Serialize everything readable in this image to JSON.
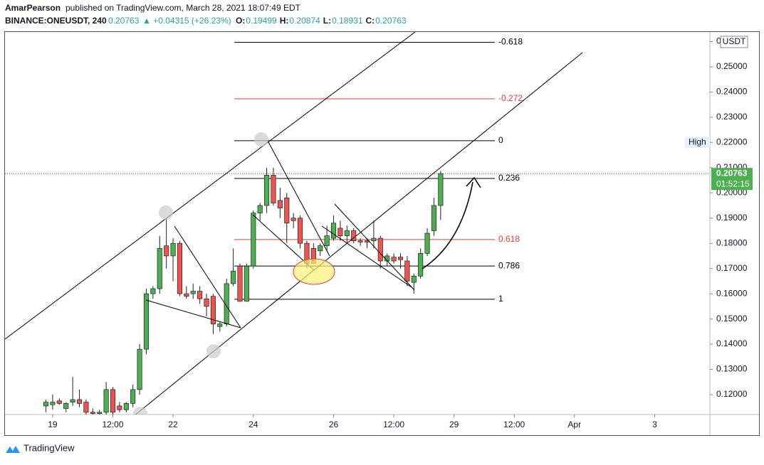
{
  "header": {
    "author": "AmarPearson",
    "published": "published on TradingView.com, March 28, 2021 18:07:49 EDT",
    "symbol": "BINANCE:ONEUSDT, 240",
    "price": "0.20763",
    "change": "▲ +0.04315 (+26.23%)",
    "ohlc": [
      {
        "key": "O:",
        "value": "0.19499"
      },
      {
        "key": "H:",
        "value": "0.20874"
      },
      {
        "key": "L:",
        "value": "0.18931"
      },
      {
        "key": "C:",
        "value": "0.20763"
      }
    ]
  },
  "footer": {
    "brand": "TradingView"
  },
  "chart_data": {
    "type": "candlestick",
    "currency": "USDT",
    "up_color": "#4caf50",
    "down_color": "#ef5350",
    "xlim": [
      -28.5,
      393
    ],
    "ylim": [
      0.1121,
      0.2638
    ],
    "xticks": [
      {
        "value": 0,
        "label": "19"
      },
      {
        "value": 36,
        "label": "12:00"
      },
      {
        "value": 72,
        "label": "22"
      },
      {
        "value": 120,
        "label": "24"
      },
      {
        "value": 168,
        "label": "26"
      },
      {
        "value": 204,
        "label": "12:00"
      },
      {
        "value": 240,
        "label": "29"
      },
      {
        "value": 276,
        "label": "12:00"
      },
      {
        "value": 312,
        "label": "Apr"
      },
      {
        "value": 360,
        "label": "3"
      }
    ],
    "yticks": [
      {
        "value": 0.12,
        "label": "0.12000"
      },
      {
        "value": 0.13,
        "label": "0.13000"
      },
      {
        "value": 0.14,
        "label": "0.14000"
      },
      {
        "value": 0.15,
        "label": "0.15000"
      },
      {
        "value": 0.16,
        "label": "0.16000"
      },
      {
        "value": 0.17,
        "label": "0.17000"
      },
      {
        "value": 0.18,
        "label": "0.18000"
      },
      {
        "value": 0.19,
        "label": "0.19000"
      },
      {
        "value": 0.2,
        "label": "0.20000"
      },
      {
        "value": 0.21,
        "label": "0.21000"
      },
      {
        "value": 0.22,
        "label": "0.22000"
      },
      {
        "value": 0.23,
        "label": "0.23000"
      },
      {
        "value": 0.24,
        "label": "0.24000"
      },
      {
        "value": 0.25,
        "label": "0.25000"
      },
      {
        "value": 0.26,
        "label": "0.26000"
      }
    ],
    "x": [
      -4,
      0,
      4,
      8,
      12,
      16,
      20,
      24,
      28,
      32,
      36,
      40,
      44,
      48,
      52,
      56,
      60,
      64,
      68,
      72,
      76,
      80,
      84,
      88,
      92,
      96,
      100,
      104,
      108,
      112,
      116,
      120,
      124,
      128,
      132,
      136,
      140,
      144,
      148,
      152,
      156,
      160,
      164,
      168,
      172,
      176,
      180,
      184,
      188,
      192,
      196,
      200,
      204,
      208,
      212,
      216,
      220,
      224,
      228,
      232
    ],
    "open": [
      0.1155,
      0.116,
      0.1175,
      0.1145,
      0.117,
      0.118,
      0.117,
      0.113,
      0.1125,
      0.113,
      0.122,
      0.1155,
      0.114,
      0.1165,
      0.122,
      0.138,
      0.16,
      0.162,
      0.179,
      0.175,
      0.18,
      0.16,
      0.16,
      0.161,
      0.158,
      0.159,
      0.147,
      0.148,
      0.164,
      0.171,
      0.157,
      0.171,
      0.192,
      0.195,
      0.207,
      0.197,
      0.198,
      0.19,
      0.19,
      0.18,
      0.178,
      0.177,
      0.179,
      0.182,
      0.186,
      0.183,
      0.185,
      0.181,
      0.181,
      0.181,
      0.182,
      0.173,
      0.1745,
      0.1745,
      0.173,
      0.1645,
      0.167,
      0.176,
      0.185,
      0.19499
    ],
    "high": [
      0.118,
      0.12,
      0.1185,
      0.117,
      0.127,
      0.122,
      0.118,
      0.1145,
      0.114,
      0.125,
      0.123,
      0.117,
      0.117,
      0.124,
      0.14,
      0.162,
      0.163,
      0.183,
      0.19,
      0.182,
      0.181,
      0.163,
      0.164,
      0.163,
      0.16,
      0.16,
      0.149,
      0.166,
      0.178,
      0.172,
      0.172,
      0.193,
      0.196,
      0.21,
      0.21,
      0.202,
      0.2,
      0.192,
      0.191,
      0.181,
      0.18,
      0.18,
      0.187,
      0.191,
      0.189,
      0.187,
      0.186,
      0.182,
      0.182,
      0.189,
      0.183,
      0.176,
      0.176,
      0.176,
      0.175,
      0.168,
      0.178,
      0.186,
      0.198,
      0.20874
    ],
    "low": [
      0.113,
      0.114,
      0.116,
      0.113,
      0.1155,
      0.115,
      0.112,
      0.111,
      0.11,
      0.112,
      0.112,
      0.113,
      0.113,
      0.115,
      0.12,
      0.136,
      0.158,
      0.16,
      0.17,
      0.165,
      0.159,
      0.158,
      0.158,
      0.156,
      0.151,
      0.144,
      0.145,
      0.147,
      0.163,
      0.157,
      0.157,
      0.17,
      0.189,
      0.192,
      0.195,
      0.19,
      0.18,
      0.186,
      0.178,
      0.17,
      0.172,
      0.175,
      0.177,
      0.181,
      0.181,
      0.18,
      0.18,
      0.179,
      0.178,
      0.178,
      0.17,
      0.171,
      0.172,
      0.17,
      0.163,
      0.16,
      0.166,
      0.175,
      0.183,
      0.18931
    ],
    "close": [
      0.117,
      0.117,
      0.1165,
      0.1165,
      0.118,
      0.1165,
      0.113,
      0.1125,
      0.113,
      0.122,
      0.113,
      0.114,
      0.1165,
      0.122,
      0.138,
      0.16,
      0.162,
      0.178,
      0.175,
      0.18,
      0.16,
      0.159,
      0.161,
      0.158,
      0.155,
      0.148,
      0.148,
      0.164,
      0.169,
      0.157,
      0.171,
      0.192,
      0.195,
      0.207,
      0.196,
      0.194,
      0.188,
      0.189,
      0.18,
      0.172,
      0.172,
      0.179,
      0.183,
      0.188,
      0.183,
      0.185,
      0.181,
      0.1805,
      0.1805,
      0.182,
      0.173,
      0.175,
      0.173,
      0.1735,
      0.165,
      0.167,
      0.176,
      0.184,
      0.195,
      0.20763
    ],
    "fib_levels": [
      {
        "label": "-0.618",
        "value": 0.2597,
        "color": "#000000"
      },
      {
        "label": "-0.272",
        "value": 0.2373,
        "color": "#e53935"
      },
      {
        "label": "0",
        "value": 0.2207,
        "color": "#000000"
      },
      {
        "label": "0.236",
        "value": 0.2057,
        "color": "#000000"
      },
      {
        "label": "0.618",
        "value": 0.1815,
        "color": "#e53935"
      },
      {
        "label": "0.786",
        "value": 0.171,
        "color": "#000000"
      },
      {
        "label": "1",
        "value": 0.1578,
        "color": "#000000"
      }
    ],
    "high_marker": {
      "label": "High",
      "value": 0.22
    },
    "last_price": {
      "value": 0.20763,
      "label": "0.20763",
      "countdown": "01:52:15"
    }
  }
}
